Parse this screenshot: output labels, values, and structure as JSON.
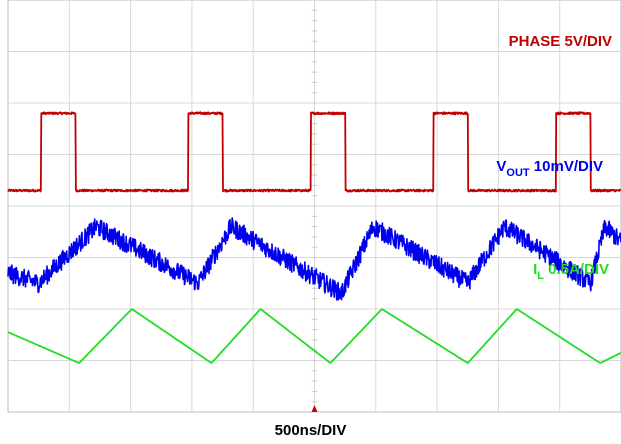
{
  "chart_data": {
    "type": "line",
    "grid": true,
    "divisions": {
      "x": 10,
      "y": 8
    },
    "time_per_div_ns": 500,
    "xlim_ns": [
      0,
      5000
    ],
    "xlabel": "500ns/DIV",
    "series": [
      {
        "name": "PHASE 5V/DIV",
        "label_main": "PHASE 5V/DIV",
        "volts_per_div": 5,
        "color": "#c00000",
        "shape": "pulse",
        "low_div": -0.3,
        "high_div": 1.2,
        "rise_edges_ns": [
          270,
          1470,
          2470,
          3470,
          4470
        ],
        "pulse_width_ns": 280,
        "noise": 0.02
      },
      {
        "name": "VOUT 10mV/DIV",
        "label_main": "V",
        "label_sub": "OUT",
        "label_rest": " 10mV/DIV",
        "volts_per_div": 0.01,
        "color": "#0000ee",
        "shape": "triangle",
        "points_ns": [
          [
            0,
            2.7
          ],
          [
            250,
            2.5
          ],
          [
            720,
            3.6
          ],
          [
            1550,
            2.5
          ],
          [
            1820,
            3.6
          ],
          [
            2720,
            2.3
          ],
          [
            2980,
            3.6
          ],
          [
            3750,
            2.5
          ],
          [
            4050,
            3.6
          ],
          [
            4750,
            2.5
          ],
          [
            4870,
            3.6
          ],
          [
            5000,
            3.3
          ]
        ],
        "noise": 0.18
      },
      {
        "name": "IL 0.5A/DIV",
        "label_main": "I",
        "label_sub": "L",
        "label_rest": " 0.5A/DIV",
        "amps_per_div": 0.5,
        "color": "#22dd22",
        "shape": "triangle",
        "points_ns": [
          [
            0,
            1.55
          ],
          [
            580,
            0.95
          ],
          [
            1010,
            2.0
          ],
          [
            1660,
            0.95
          ],
          [
            2060,
            2.0
          ],
          [
            2630,
            0.95
          ],
          [
            3050,
            2.0
          ],
          [
            3750,
            0.95
          ],
          [
            4150,
            2.0
          ],
          [
            4830,
            0.95
          ],
          [
            5000,
            1.15
          ]
        ],
        "noise": 0.0
      }
    ]
  }
}
